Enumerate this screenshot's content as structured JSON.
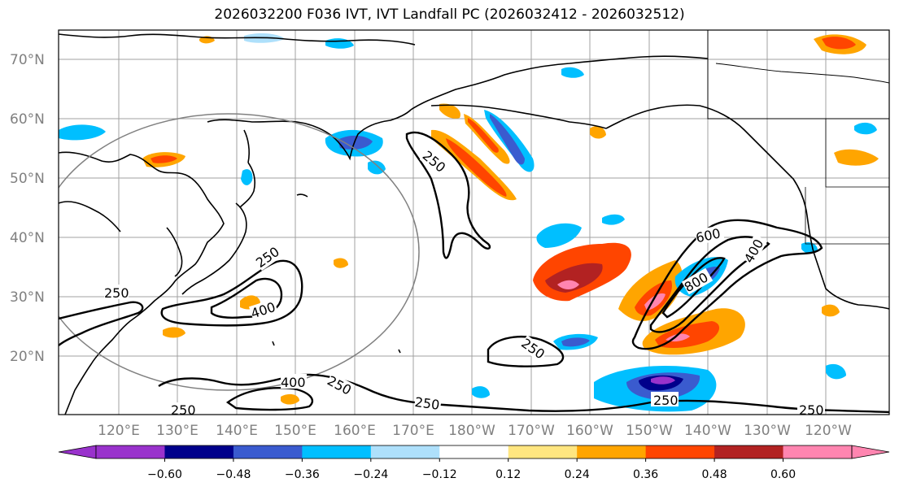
{
  "title": "2026032200 F036 IVT, IVT Landfall PC (2026032412 - 2026032512)",
  "lat_labels": [
    "70°N",
    "60°N",
    "50°N",
    "40°N",
    "30°N",
    "20°N"
  ],
  "lon_labels": [
    "120°E",
    "130°E",
    "140°E",
    "150°E",
    "160°E",
    "170°E",
    "180°W",
    "170°W",
    "160°W",
    "150°W",
    "140°W",
    "130°W",
    "120°W"
  ],
  "colorbar": {
    "colors": [
      "#9932cc",
      "#00008b",
      "#3a5bcf",
      "#00bfff",
      "#aee0fb",
      "#ffffff",
      "#ffe680",
      "#ffa500",
      "#ff4500",
      "#b22222",
      "#ff85b0"
    ],
    "tick_labels": [
      "−0.60",
      "−0.48",
      "−0.36",
      "−0.24",
      "−0.12",
      "0.12",
      "0.24",
      "0.36",
      "0.48",
      "0.60"
    ]
  },
  "contour_labels": [
    "250",
    "250",
    "400",
    "250",
    "400",
    "250",
    "250",
    "250",
    "250",
    "600",
    "800",
    "400",
    "250",
    "250"
  ],
  "icons": {
    "ring": "circle-of-interest"
  }
}
